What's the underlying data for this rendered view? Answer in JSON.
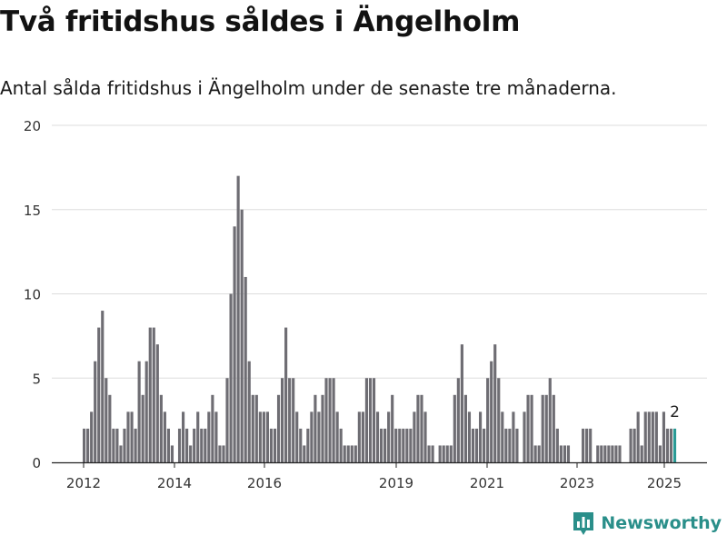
{
  "title": "Två fritidshus såldes i Ängelholm",
  "subtitle": "Antal sålda fritidshus i Ängelholm under de senaste tre månaderna.",
  "brand": {
    "name": "Newsworthy",
    "icon": "newsworthy-logo-icon",
    "color": "#2a8f8a"
  },
  "colors": {
    "bars": "#6e6d73",
    "highlight": "#2a9a95",
    "grid": "#dddddd"
  },
  "chart_data": {
    "type": "bar",
    "title": "Två fritidshus såldes i Ängelholm",
    "subtitle": "Antal sålda fritidshus i Ängelholm under de senaste tre månaderna.",
    "xlabel": "",
    "ylabel": "",
    "ylim": [
      0,
      20
    ],
    "y_ticks": [
      0,
      5,
      10,
      15,
      20
    ],
    "x_ticks": [
      "2012",
      "2014",
      "2016",
      "2019",
      "2021",
      "2023",
      "2025"
    ],
    "grid": true,
    "series": [
      {
        "name": "",
        "values": [
          2,
          2,
          3,
          6,
          8,
          9,
          5,
          4,
          2,
          2,
          1,
          2,
          3,
          3,
          2,
          6,
          4,
          6,
          8,
          8,
          7,
          4,
          3,
          2,
          1,
          0,
          2,
          3,
          2,
          1,
          2,
          3,
          2,
          2,
          3,
          4,
          3,
          1,
          1,
          5,
          10,
          14,
          17,
          15,
          11,
          6,
          4,
          4,
          3,
          3,
          3,
          2,
          2,
          4,
          5,
          8,
          5,
          5,
          3,
          2,
          1,
          2,
          3,
          4,
          3,
          4,
          5,
          5,
          5,
          3,
          2,
          1,
          1,
          1,
          1,
          3,
          3,
          5,
          5,
          5,
          3,
          2,
          2,
          3,
          4,
          2,
          2,
          2,
          2,
          2,
          3,
          4,
          4,
          3,
          1,
          1,
          0,
          1,
          1,
          1,
          1,
          4,
          5,
          7,
          4,
          3,
          2,
          2,
          3,
          2,
          5,
          6,
          7,
          5,
          3,
          2,
          2,
          3,
          2,
          0,
          3,
          4,
          4,
          1,
          1,
          4,
          4,
          5,
          4,
          2,
          1,
          1,
          1,
          0,
          0,
          0,
          2,
          2,
          2,
          0,
          1,
          1,
          1,
          1,
          1,
          1,
          1,
          0,
          0,
          2,
          2,
          3,
          1,
          3,
          3,
          3,
          3,
          1,
          3,
          2,
          2,
          2
        ]
      }
    ],
    "annotations": [
      {
        "label": "2",
        "target": "last_bar"
      }
    ]
  }
}
